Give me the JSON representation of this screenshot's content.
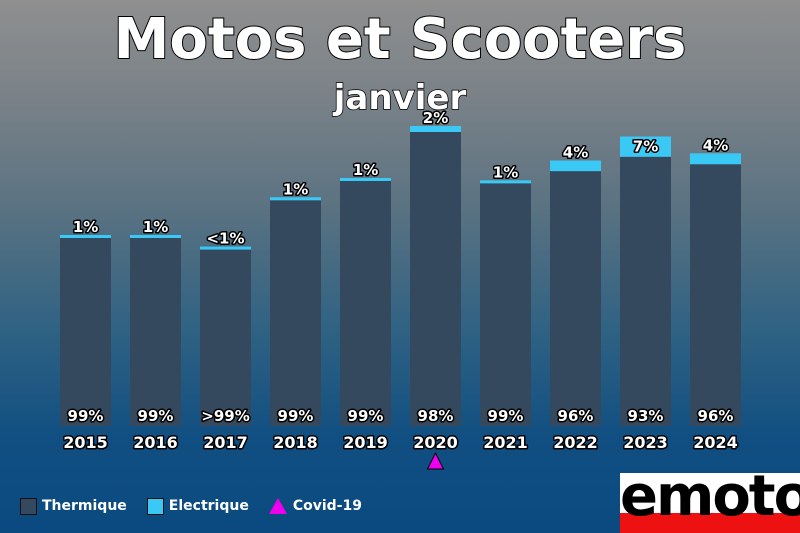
{
  "header": {
    "title": "Motos et Scooters",
    "subtitle": "janvier"
  },
  "chart_data": {
    "type": "bar",
    "stacked": true,
    "title": "Motos et Scooters",
    "subtitle": "janvier",
    "categories": [
      "2015",
      "2016",
      "2017",
      "2018",
      "2019",
      "2020",
      "2021",
      "2022",
      "2023",
      "2024"
    ],
    "totals_relative": [
      0.633,
      0.633,
      0.591,
      0.76,
      0.825,
      1.0,
      0.817,
      0.885,
      0.965,
      0.909
    ],
    "series": [
      {
        "name": "Thermique",
        "color": "#34495e",
        "values": [
          99,
          99,
          99.5,
          99,
          99,
          98,
          99,
          96,
          93,
          96
        ],
        "labels": [
          "99%",
          "99%",
          ">99%",
          "99%",
          "99%",
          "98%",
          "99%",
          "96%",
          "93%",
          "96%"
        ]
      },
      {
        "name": "Electrique",
        "color": "#3ac8f5",
        "values": [
          1,
          1,
          0.5,
          1,
          1,
          2,
          1,
          4,
          7,
          4
        ],
        "labels": [
          "1%",
          "1%",
          "<1%",
          "1%",
          "1%",
          "2%",
          "1%",
          "4%",
          "7%",
          "4%"
        ]
      }
    ],
    "annotations": [
      {
        "category": "2020",
        "marker": "triangle",
        "color": "#ee00ee",
        "label": "Covid-19"
      }
    ],
    "grid": false,
    "legend_position": "bottom-left"
  },
  "legend": {
    "items": [
      {
        "label": "Thermique",
        "color": "#34495e"
      },
      {
        "label": "Electrique",
        "color": "#3ac8f5"
      },
      {
        "label": "Covid-19",
        "color": "#ee00ee"
      }
    ]
  },
  "logo": {
    "text": "emoto"
  }
}
